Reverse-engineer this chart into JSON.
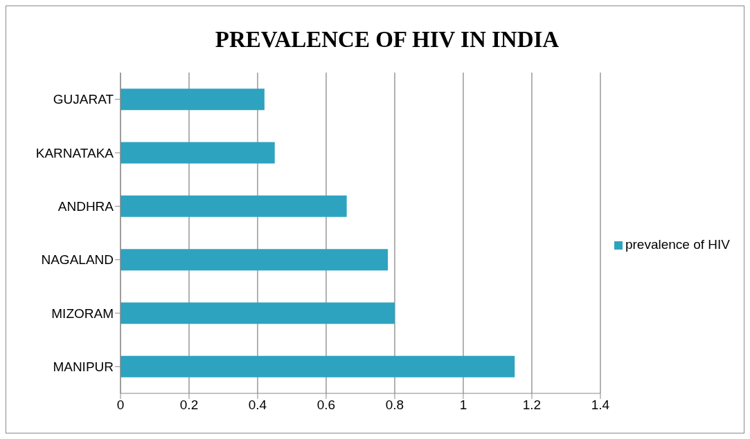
{
  "chart_data": {
    "type": "bar",
    "orientation": "horizontal",
    "title": "PREVALENCE OF HIV IN INDIA",
    "categories": [
      "GUJARAT",
      "KARNATAKA",
      "ANDHRA",
      "NAGALAND",
      "MIZORAM",
      "MANIPUR"
    ],
    "series": [
      {
        "name": "prevalence of HIV",
        "color": "#2ea3c0",
        "values": [
          0.42,
          0.45,
          0.66,
          0.78,
          0.8,
          1.15
        ]
      }
    ],
    "xlim": [
      0,
      1.4
    ],
    "xticks": [
      0,
      0.2,
      0.4,
      0.6,
      0.8,
      1,
      1.2,
      1.4
    ],
    "grid": "x",
    "legend": "right"
  }
}
